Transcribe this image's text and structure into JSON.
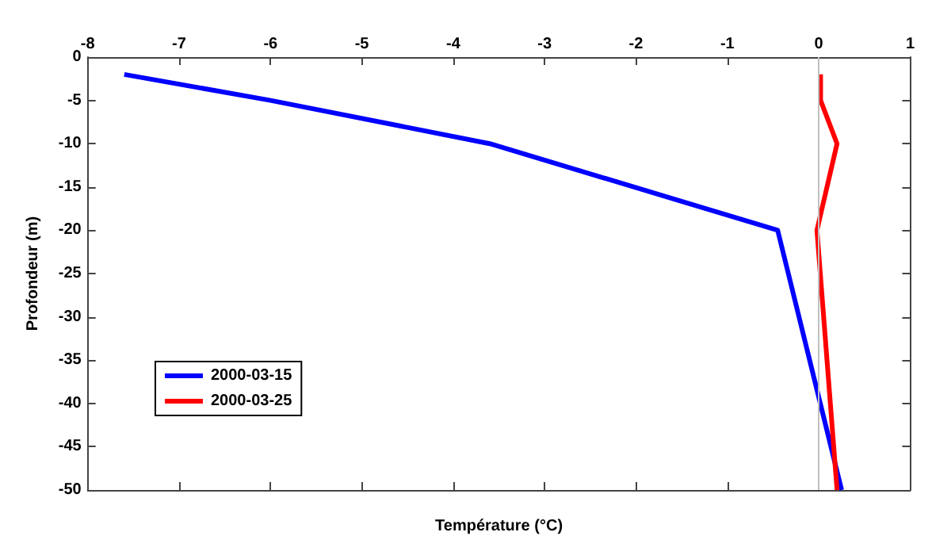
{
  "chart_data": {
    "type": "line",
    "xlabel": "Température (°C)",
    "ylabel": "Profondeur (m)",
    "xlim": [
      -8,
      1
    ],
    "xticks": [
      -8,
      -7,
      -6,
      -5,
      -4,
      -3,
      -2,
      -1,
      0,
      1
    ],
    "ylim": [
      -50,
      0
    ],
    "yticks": [
      0,
      -5,
      -10,
      -15,
      -20,
      -25,
      -30,
      -35,
      -40,
      -45,
      -50
    ],
    "series": [
      {
        "name": "2000-03-15",
        "color": "#0000ff",
        "x": [
          -7.6,
          -6,
          -3.6,
          -0.45,
          0.25
        ],
        "values": [
          -2,
          -5,
          -10,
          -20,
          -50
        ]
      },
      {
        "name": "2000-03-25",
        "color": "#ff0000",
        "x": [
          0.02,
          0.02,
          0.2,
          -0.02,
          0.2
        ],
        "values": [
          -2,
          -5,
          -10,
          -20,
          -50
        ]
      }
    ],
    "ref_lines": [
      {
        "axis": "x",
        "value": 0,
        "color": "#bfbfbf"
      }
    ],
    "legend": "bottom left",
    "grid": false,
    "marker": "none",
    "line_style": "solid"
  }
}
